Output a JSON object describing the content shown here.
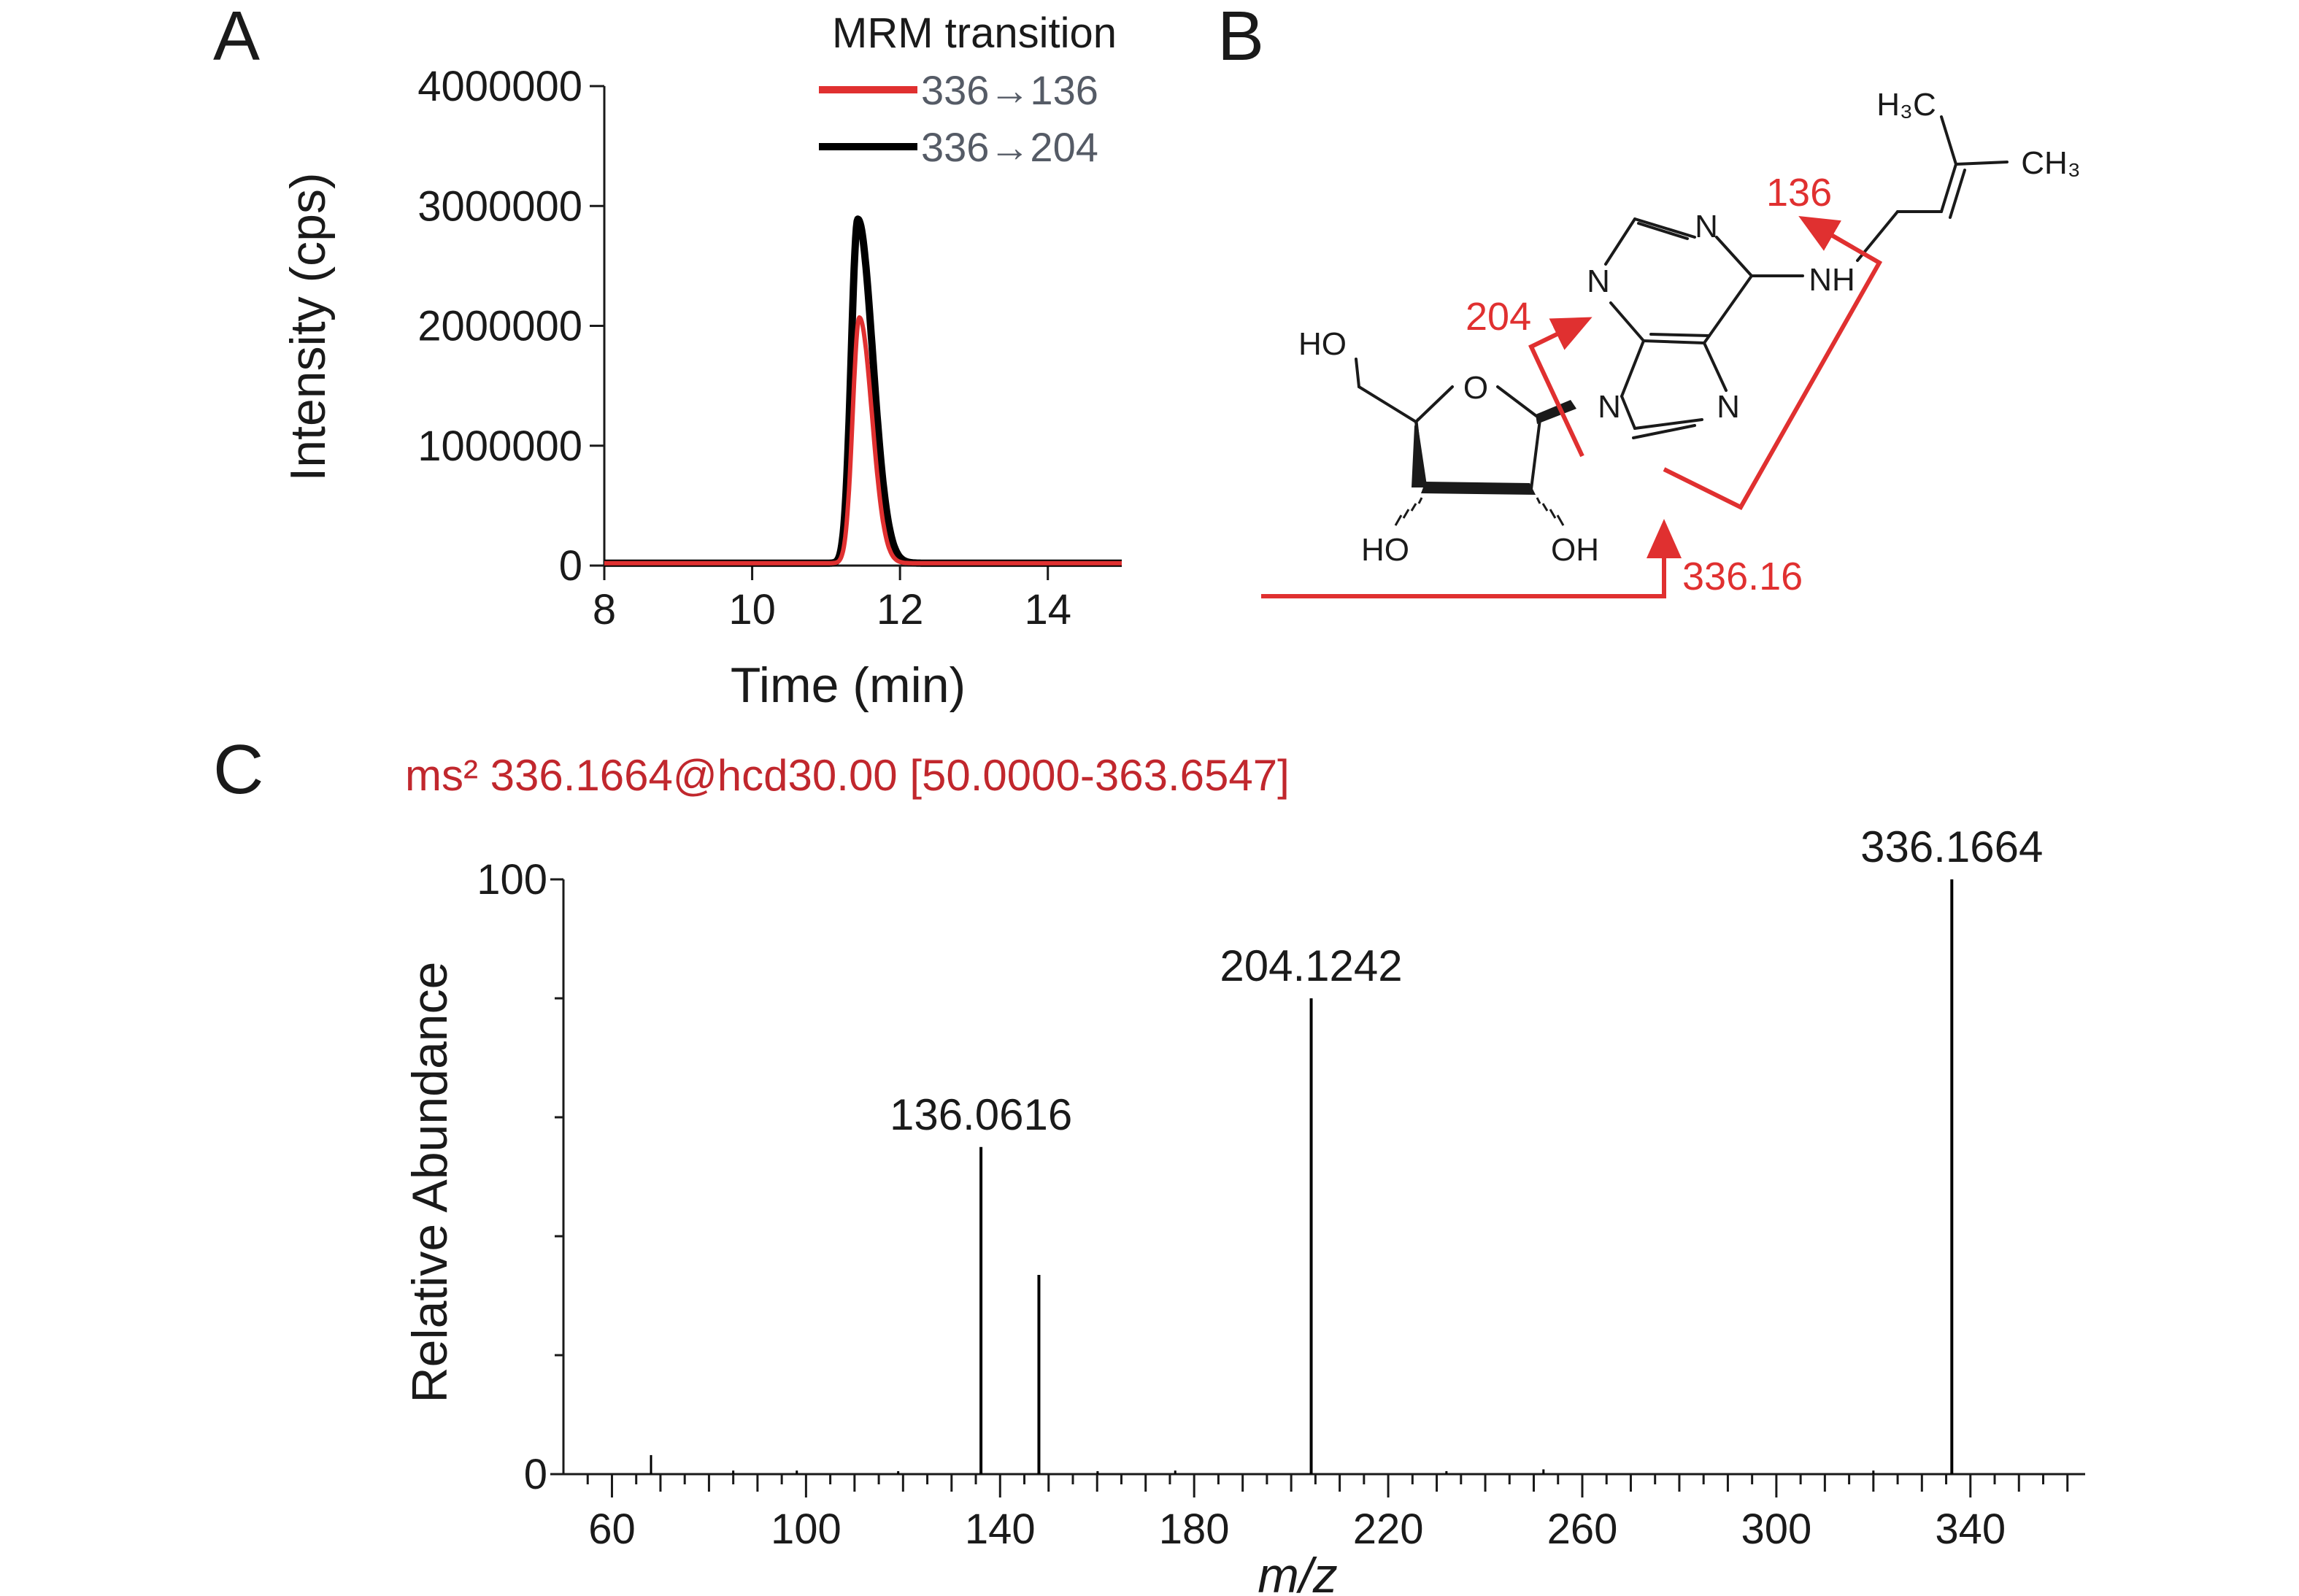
{
  "panels": {
    "a": "A",
    "b": "B",
    "c": "C"
  },
  "colors": {
    "red": "#e03030",
    "black": "#000000",
    "ms_header": "#c1272d",
    "legend_gray": "#555b66"
  },
  "chart_data": [
    {
      "panel": "A",
      "type": "line",
      "xlabel": "Time (min)",
      "ylabel": "Intensity (cps)",
      "xlim": [
        8,
        15
      ],
      "ylim": [
        0,
        4000000
      ],
      "xticks": [
        "8",
        "10",
        "12",
        "14"
      ],
      "yticks": [
        "0",
        "1000000",
        "2000000",
        "3000000",
        "4000000"
      ],
      "legend_title": "MRM transition",
      "legend_position": "top-right",
      "series": [
        {
          "name": "336→136",
          "color": "#e03030",
          "peak_time": 11.45,
          "peak_intensity": 2050000,
          "rise_sigma": 0.09,
          "tail_sigma": 0.17
        },
        {
          "name": "336→204",
          "color": "#000000",
          "peak_time": 11.43,
          "peak_intensity": 2870000,
          "rise_sigma": 0.09,
          "tail_sigma": 0.2
        }
      ],
      "baseline": 20000
    },
    {
      "panel": "C",
      "type": "bar",
      "header": "ms² 336.1664@hcd30.00  [50.0000-363.6547]",
      "xlabel": "m/z",
      "ylabel": "Relative Abundance",
      "xlim": [
        50,
        363.65
      ],
      "ylim": [
        0,
        100
      ],
      "xticks": [
        "60",
        "100",
        "140",
        "180",
        "220",
        "260",
        "300",
        "340"
      ],
      "yticks": [
        "0",
        "100"
      ],
      "peaks": [
        {
          "mz": 68.05,
          "abundance": 3.2
        },
        {
          "mz": 85.0,
          "abundance": 0.6
        },
        {
          "mz": 98.1,
          "abundance": 0.6
        },
        {
          "mz": 119.0,
          "abundance": 0.5
        },
        {
          "mz": 136.0616,
          "abundance": 55,
          "label": "136.0616"
        },
        {
          "mz": 148.0,
          "abundance": 33.5
        },
        {
          "mz": 160.1,
          "abundance": 0.5
        },
        {
          "mz": 176.1,
          "abundance": 0.6
        },
        {
          "mz": 204.1242,
          "abundance": 80,
          "label": "204.1242"
        },
        {
          "mz": 232.0,
          "abundance": 0.5
        },
        {
          "mz": 252.0,
          "abundance": 0.8
        },
        {
          "mz": 320.0,
          "abundance": 0.6
        },
        {
          "mz": 336.1664,
          "abundance": 100,
          "label": "336.1664"
        }
      ]
    }
  ],
  "structure": {
    "atoms": {
      "n1": "N",
      "n3": "N",
      "n7": "N",
      "n9": "N",
      "nh": "NH",
      "o_ring": "O",
      "ho_top": "HO",
      "ho_bl": "HO",
      "oh_br": "OH",
      "h3c": "H₃C",
      "ch3": "CH₃"
    },
    "fragments": {
      "f204": "204",
      "f136": "136",
      "f336": "336.16"
    }
  }
}
